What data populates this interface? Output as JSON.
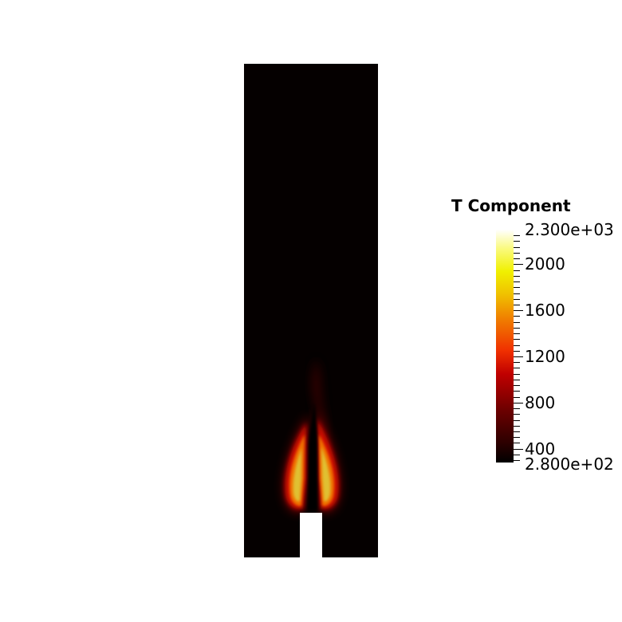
{
  "legend": {
    "title": "T Component",
    "max_label": "2.300e+03",
    "min_label": "2.800e+02",
    "tick_labels": [
      "2000",
      "1600",
      "1200",
      "800",
      "400"
    ],
    "range": [
      280,
      2300
    ],
    "major_values": [
      2000,
      1600,
      1200,
      800,
      400
    ],
    "colormap": [
      "#000000",
      "#6a0000",
      "#c00000",
      "#f03000",
      "#f08000",
      "#f0c000",
      "#f0f000",
      "#ffffff"
    ]
  },
  "domain": {
    "background_color": "#050000",
    "inlet_color": "#ffffff",
    "flame_colors": [
      "#5a0000",
      "#c00000",
      "#f04000",
      "#f09000",
      "#e8c030",
      "#f0e060"
    ]
  }
}
